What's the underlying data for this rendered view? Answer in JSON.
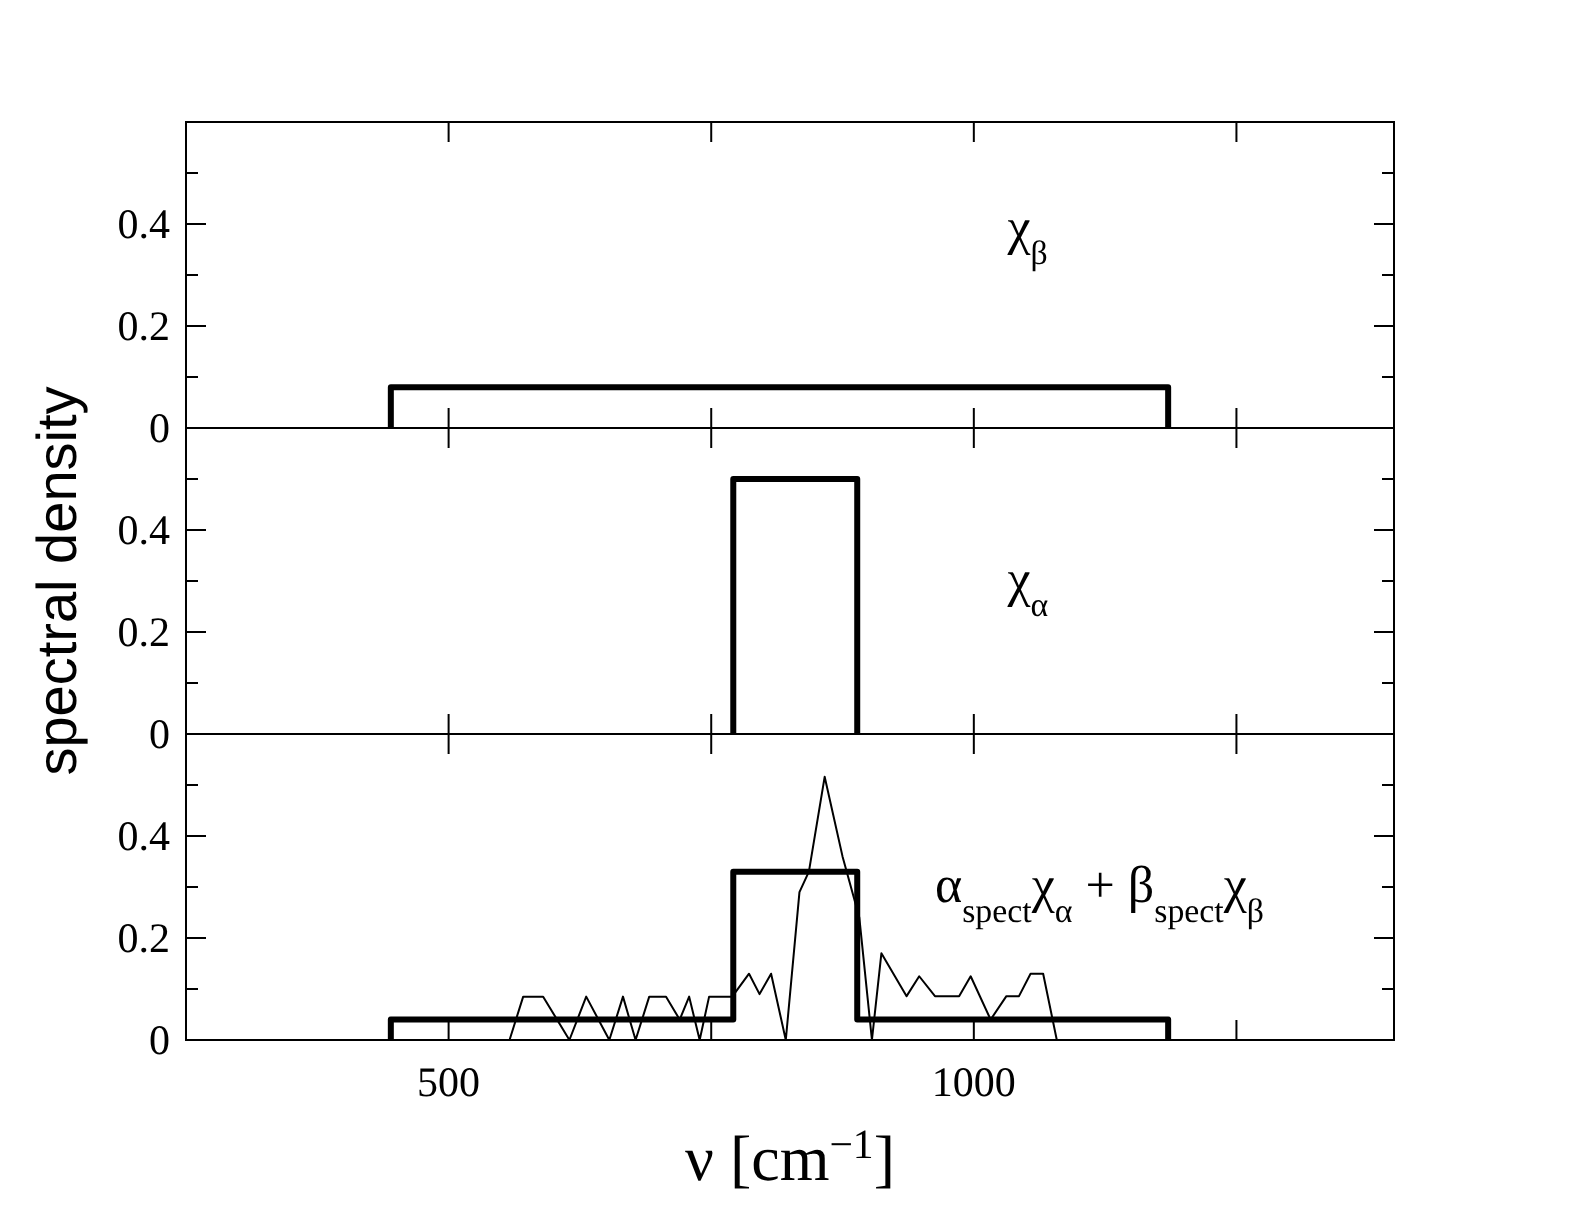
{
  "chart_data": [
    {
      "type": "line",
      "xlim": [
        250,
        1400
      ],
      "ylim": [
        0,
        0.6
      ],
      "tick_labels": "y",
      "xticks": [
        {
          "value": 500,
          "label": null
        },
        {
          "value": 750,
          "label": null
        },
        {
          "value": 1000,
          "label": null
        },
        {
          "value": 1250,
          "label": null
        }
      ],
      "yticks": [
        0,
        {
          "value": 0.1,
          "label": null
        },
        0.2,
        {
          "value": 0.3,
          "label": null
        },
        0.4,
        {
          "value": 0.5,
          "label": null
        }
      ],
      "series": [
        {
          "name": "χ$_{β}$",
          "color": "#000000",
          "x": [
            445,
            445,
            1185,
            1185
          ],
          "values": [
            0,
            0.08,
            0.08,
            0
          ]
        }
      ]
    },
    {
      "type": "line",
      "xlim": [
        250,
        1400
      ],
      "ylim": [
        0,
        0.6
      ],
      "tick_labels": "y",
      "ylabel": "spectral density",
      "xticks": [
        {
          "value": 500,
          "label": null
        },
        {
          "value": 750,
          "label": null
        },
        {
          "value": 1000,
          "label": null
        },
        {
          "value": 1250,
          "label": null
        }
      ],
      "yticks": [
        0,
        {
          "value": 0.1,
          "label": null
        },
        0.2,
        {
          "value": 0.3,
          "label": null
        },
        0.4,
        {
          "value": 0.5,
          "label": null
        }
      ],
      "series": [
        {
          "name": "χ$_{α}$",
          "color": "#000000",
          "x": [
            771,
            771,
            889,
            889
          ],
          "values": [
            0,
            0.5,
            0.5,
            0
          ]
        }
      ]
    },
    {
      "type": "line",
      "xlim": [
        250,
        1400
      ],
      "ylim": [
        0,
        0.6
      ],
      "xlabel": "ν [cm$^{−1}$]",
      "xticks": [
        {
          "value": 500,
          "label": "500"
        },
        {
          "value": 750,
          "label": null
        },
        {
          "value": 1000,
          "label": "1000"
        },
        {
          "value": 1250,
          "label": null
        }
      ],
      "yticks": [
        0,
        {
          "value": 0.1,
          "label": null
        },
        0.2,
        {
          "value": 0.3,
          "label": null
        },
        0.4,
        {
          "value": 0.5,
          "label": null
        }
      ],
      "series": [
        {
          "name": "α$_{spect}$χ$_{α}$ + β$_{spect}$χ$_{β}$",
          "color": "#000000",
          "x": [
            445,
            445,
            771,
            771,
            889,
            889,
            1185,
            1185
          ],
          "values": [
            0,
            0.04,
            0.04,
            0.33,
            0.33,
            0.04,
            0.04,
            0
          ]
        },
        {
          "color": "#000000",
          "x": [
            558,
            571,
            590,
            615,
            631,
            653,
            666,
            678,
            691,
            707,
            720,
            729,
            739,
            748,
            770,
            786,
            796,
            807,
            821,
            834,
            843,
            858,
            875,
            891,
            903,
            912,
            936,
            948,
            963,
            986,
            997,
            1016,
            1031,
            1043,
            1054,
            1066,
            1079
          ],
          "values": [
            0,
            0.085,
            0.085,
            0,
            0.085,
            0,
            0.085,
            0,
            0.085,
            0.085,
            0.04,
            0.085,
            0,
            0.085,
            0.085,
            0.13,
            0.09,
            0.13,
            0,
            0.29,
            0.33,
            0.516,
            0.36,
            0.24,
            0,
            0.17,
            0.086,
            0.125,
            0.086,
            0.086,
            0.125,
            0.04,
            0.086,
            0.086,
            0.13,
            0.13,
            0
          ]
        }
      ]
    }
  ]
}
